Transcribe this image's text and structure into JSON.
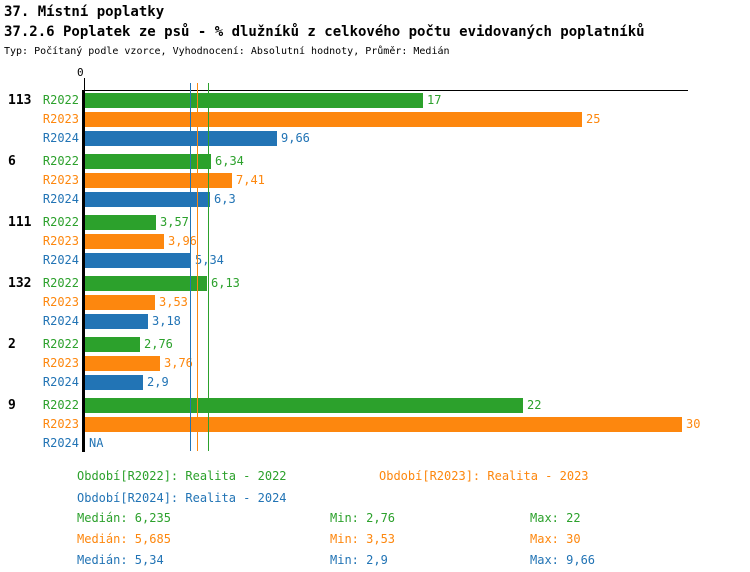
{
  "title": "37. Místní poplatky",
  "subtitle": "37.2.6 Poplatek ze psů - % dlužníků z celkového počtu evidovaných poplatníků",
  "meta": "Typ: Počítaný podle vzorce, Vyhodnocení: Absolutní hodnoty, Průměr: Medián",
  "colors": {
    "r2022": "#2ca12c",
    "r2023": "#fd870e",
    "r2024": "#2274b5",
    "axis": "#000000"
  },
  "chart_data": {
    "type": "bar",
    "orientation": "horizontal",
    "title": "37.2.6 Poplatek ze psů - % dlužníků z celkového počtu evidovaných poplatníků",
    "xlabel": "",
    "ylabel": "",
    "xlim": [
      0,
      30
    ],
    "x_origin_label": "0",
    "grid": false,
    "series_labels": [
      "R2022",
      "R2023",
      "R2024"
    ],
    "groups": [
      {
        "label": "113",
        "values": [
          17,
          25,
          9.66
        ],
        "value_labels": [
          "17",
          "25",
          "9,66"
        ]
      },
      {
        "label": "6",
        "values": [
          6.34,
          7.41,
          6.3
        ],
        "value_labels": [
          "6,34",
          "7,41",
          "6,3"
        ]
      },
      {
        "label": "111",
        "values": [
          3.57,
          3.96,
          5.34
        ],
        "value_labels": [
          "3,57",
          "3,96",
          "5,34"
        ]
      },
      {
        "label": "132",
        "values": [
          6.13,
          3.53,
          3.18
        ],
        "value_labels": [
          "6,13",
          "3,53",
          "3,18"
        ]
      },
      {
        "label": "2",
        "values": [
          2.76,
          3.76,
          2.9
        ],
        "value_labels": [
          "2,76",
          "3,76",
          "2,9"
        ]
      },
      {
        "label": "9",
        "values": [
          22,
          30,
          null
        ],
        "value_labels": [
          "22",
          "30",
          "NA"
        ]
      }
    ],
    "median_lines": [
      {
        "series": "R2024",
        "value": 5.34
      },
      {
        "series": "R2023",
        "value": 5.685
      },
      {
        "series": "R2022",
        "value": 6.235
      }
    ]
  },
  "legend": {
    "period_r2022": "Období[R2022]: Realita - 2022",
    "period_r2023": "Období[R2023]: Realita - 2023",
    "period_r2024": "Období[R2024]: Realita - 2024",
    "stats_r2022": {
      "median": "Medián: 6,235",
      "min": "Min: 2,76",
      "max": "Max: 22"
    },
    "stats_r2023": {
      "median": "Medián: 5,685",
      "min": "Min: 3,53",
      "max": "Max: 30"
    },
    "stats_r2024": {
      "median": "Medián: 5,34",
      "min": "Min: 2,9",
      "max": "Max: 9,66"
    }
  }
}
